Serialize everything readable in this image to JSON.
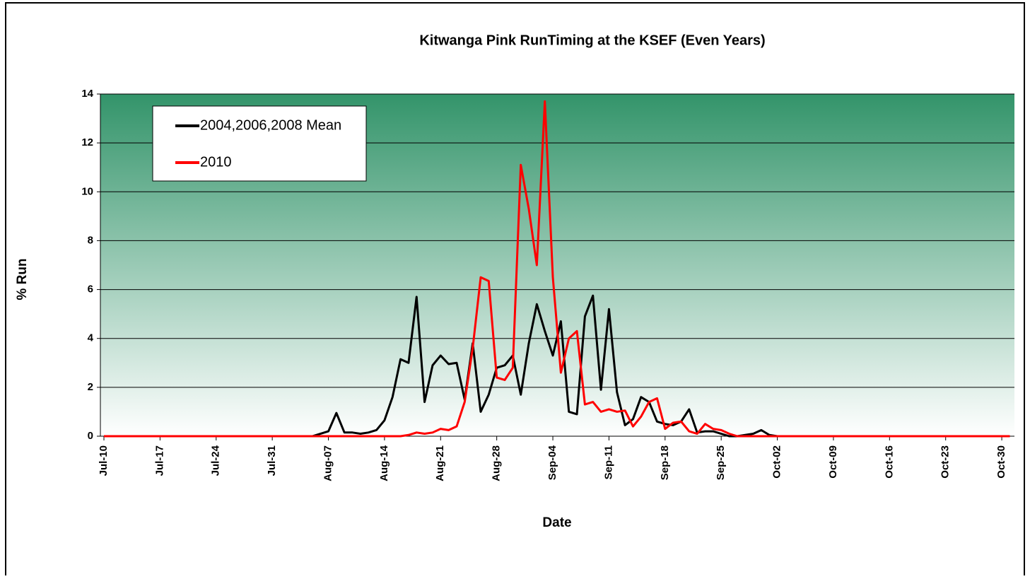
{
  "chart_data": {
    "type": "line",
    "title": "Kitwanga Pink RunTiming at the KSEF (Even Years)",
    "x_label": "Date",
    "y_label": "% Run",
    "categories": [
      "Jul-10",
      null,
      null,
      null,
      null,
      null,
      null,
      "Jul-17",
      null,
      null,
      null,
      null,
      null,
      null,
      "Jul-24",
      null,
      null,
      null,
      null,
      null,
      null,
      "Jul-31",
      null,
      null,
      null,
      null,
      null,
      null,
      "Aug-07",
      null,
      null,
      null,
      null,
      null,
      null,
      "Aug-14",
      null,
      null,
      null,
      null,
      null,
      null,
      "Aug-21",
      null,
      null,
      null,
      null,
      null,
      null,
      "Aug-28",
      null,
      null,
      null,
      null,
      null,
      null,
      "Sep-04",
      null,
      null,
      null,
      null,
      null,
      null,
      "Sep-11",
      null,
      null,
      null,
      null,
      null,
      null,
      "Sep-18",
      null,
      null,
      null,
      null,
      null,
      null,
      "Sep-25",
      null,
      null,
      null,
      null,
      null,
      null,
      "Oct-02",
      null,
      null,
      null,
      null,
      null,
      null,
      "Oct-09",
      null,
      null,
      null,
      null,
      null,
      null,
      "Oct-16",
      null,
      null,
      null,
      null,
      null,
      null,
      "Oct-23",
      null,
      null,
      null,
      null,
      null,
      null,
      "Oct-30",
      null
    ],
    "series": [
      {
        "name": "2004,2006,2008 Mean",
        "color": "#000000",
        "values": [
          0,
          0,
          0,
          0,
          0,
          0,
          0,
          0,
          0,
          0,
          0,
          0,
          0,
          0,
          0,
          0,
          0,
          0,
          0,
          0,
          0,
          0,
          0,
          0,
          0,
          0,
          0,
          0.1,
          0.2,
          0.95,
          0.15,
          0.15,
          0.1,
          0.15,
          0.25,
          0.65,
          1.6,
          3.15,
          3.0,
          5.7,
          1.4,
          2.9,
          3.3,
          2.95,
          3.0,
          1.5,
          3.8,
          1.0,
          1.7,
          2.8,
          2.9,
          3.3,
          1.7,
          3.8,
          5.4,
          4.3,
          3.3,
          4.7,
          1.0,
          0.9,
          4.9,
          5.75,
          1.9,
          5.2,
          1.8,
          0.45,
          0.7,
          1.6,
          1.4,
          0.6,
          0.5,
          0.45,
          0.6,
          1.1,
          0.15,
          0.2,
          0.2,
          0.1,
          0,
          0,
          0.05,
          0.1,
          0.25,
          0.05,
          0,
          0,
          0,
          0,
          0,
          0,
          0,
          0,
          0,
          0,
          0,
          0,
          0,
          0,
          0,
          0,
          0,
          0,
          0,
          0,
          0,
          0,
          0,
          0,
          0,
          0,
          0,
          0,
          0,
          0
        ]
      },
      {
        "name": "2010",
        "color": "#ff0000",
        "values": [
          0,
          0,
          0,
          0,
          0,
          0,
          0,
          0,
          0,
          0,
          0,
          0,
          0,
          0,
          0,
          0,
          0,
          0,
          0,
          0,
          0,
          0,
          0,
          0,
          0,
          0,
          0,
          0,
          0,
          0,
          0,
          0,
          0,
          0,
          0,
          0,
          0,
          0,
          0.05,
          0.15,
          0.1,
          0.15,
          0.3,
          0.25,
          0.4,
          1.4,
          3.6,
          6.5,
          6.35,
          2.4,
          2.3,
          2.8,
          11.1,
          9.3,
          7.0,
          13.7,
          6.5,
          2.6,
          4.0,
          4.3,
          1.3,
          1.4,
          1.0,
          1.1,
          1.0,
          1.05,
          0.4,
          0.8,
          1.4,
          1.55,
          0.3,
          0.55,
          0.6,
          0.2,
          0.1,
          0.5,
          0.3,
          0.25,
          0.1,
          0,
          0,
          0,
          0,
          0,
          0,
          0,
          0,
          0,
          0,
          0,
          0,
          0,
          0,
          0,
          0,
          0,
          0,
          0,
          0,
          0,
          0,
          0,
          0,
          0,
          0,
          0,
          0,
          0,
          0,
          0,
          0,
          0,
          0,
          0
        ]
      }
    ],
    "ylim": [
      0,
      14
    ],
    "yticks": [
      0,
      2,
      4,
      6,
      8,
      10,
      12,
      14
    ],
    "grid": true,
    "legend": "upper left"
  }
}
